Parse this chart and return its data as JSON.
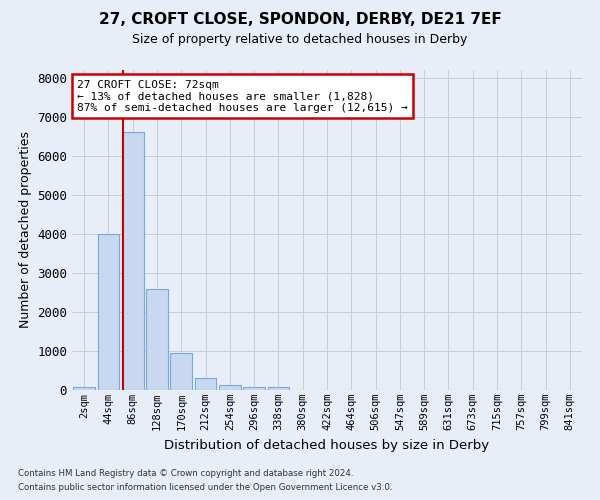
{
  "title": "27, CROFT CLOSE, SPONDON, DERBY, DE21 7EF",
  "subtitle": "Size of property relative to detached houses in Derby",
  "ylabel": "Number of detached properties",
  "xlabel": "Distribution of detached houses by size in Derby",
  "footer_line1": "Contains HM Land Registry data © Crown copyright and database right 2024.",
  "footer_line2": "Contains public sector information licensed under the Open Government Licence v3.0.",
  "bar_labels": [
    "2sqm",
    "44sqm",
    "86sqm",
    "128sqm",
    "170sqm",
    "212sqm",
    "254sqm",
    "296sqm",
    "338sqm",
    "380sqm",
    "422sqm",
    "464sqm",
    "506sqm",
    "547sqm",
    "589sqm",
    "631sqm",
    "673sqm",
    "715sqm",
    "757sqm",
    "799sqm",
    "841sqm"
  ],
  "bar_values": [
    70,
    4000,
    6600,
    2600,
    950,
    300,
    130,
    80,
    80,
    0,
    0,
    0,
    0,
    0,
    0,
    0,
    0,
    0,
    0,
    0,
    0
  ],
  "bar_color": "#c8d8f0",
  "bar_edgecolor": "#7aa8d8",
  "grid_color": "#cccccc",
  "background_color": "#e8eef8",
  "annotation_text": "27 CROFT CLOSE: 72sqm\n← 13% of detached houses are smaller (1,828)\n87% of semi-detached houses are larger (12,615) →",
  "annotation_box_color": "#ffffff",
  "annotation_border_color": "#cc0000",
  "red_line_color": "#cc0000",
  "ylim": [
    0,
    8200
  ],
  "yticks": [
    0,
    1000,
    2000,
    3000,
    4000,
    5000,
    6000,
    7000,
    8000
  ]
}
